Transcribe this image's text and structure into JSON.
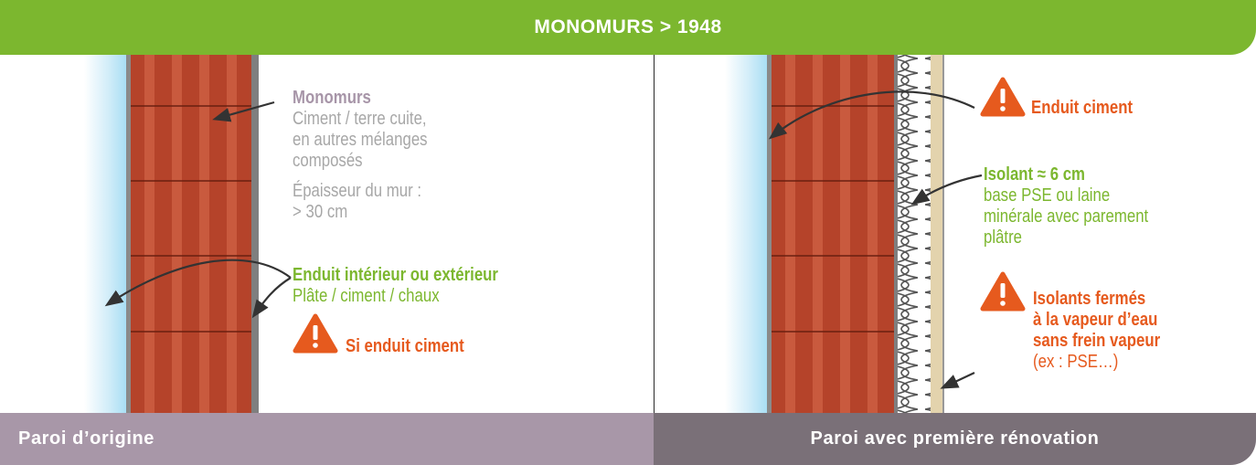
{
  "header": {
    "title": "MONOMURS > 1948"
  },
  "left_panel": {
    "monomurs_title": "Monomurs",
    "monomurs_desc": [
      "Ciment / terre cuite,",
      "en autres mélanges",
      "composés"
    ],
    "thickness": [
      "Épaisseur du mur :",
      "> 30 cm"
    ],
    "enduit_title": "Enduit intérieur ou extérieur",
    "enduit_desc": "Plâte / ciment / chaux",
    "warning": "Si enduit ciment"
  },
  "right_panel": {
    "warning_enduit": "Enduit ciment",
    "isolant_title": "Isolant ≈ 6 cm",
    "isolant_desc": [
      "base PSE ou laine",
      "minérale avec parement",
      "plâtre"
    ],
    "warning_isolants": [
      "Isolants fermés",
      "à la vapeur d’eau",
      "sans frein vapeur"
    ],
    "example": "(ex : PSE…)"
  },
  "footer": {
    "left_label": "Paroi d’origine",
    "right_label": "Paroi avec première rénovation"
  },
  "colors": {
    "green": "#7cb72f",
    "orange": "#e65a1e",
    "brick": "#b5432a",
    "mauve": "#a897a8",
    "dark_mauve": "#7a7078",
    "blue_plaster": "#bfe6f6"
  },
  "icons": [
    "warning-icon",
    "arrow-icon"
  ]
}
